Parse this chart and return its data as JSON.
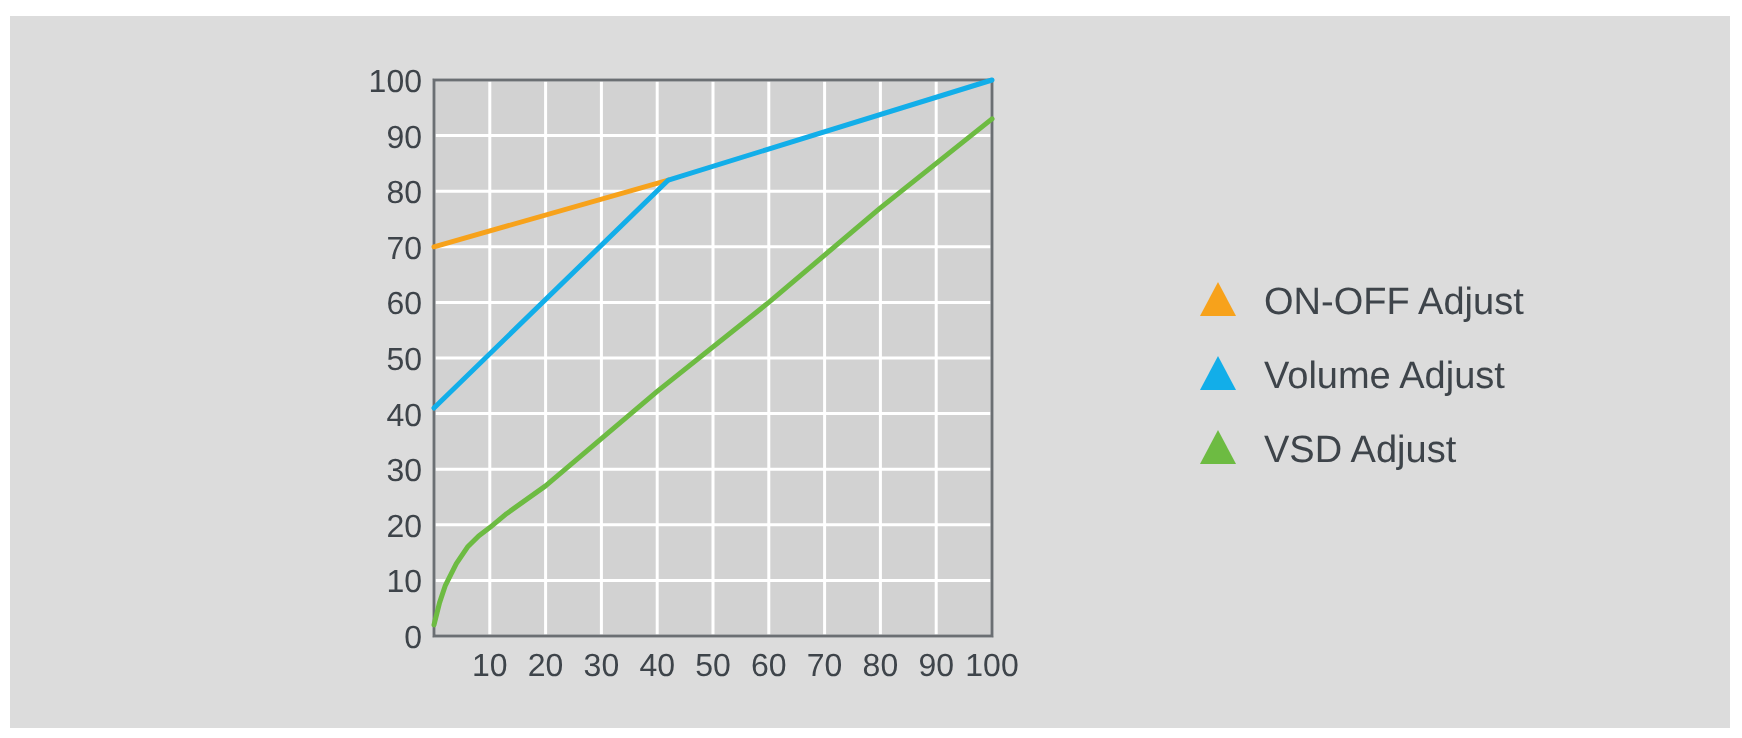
{
  "chart_data": {
    "type": "line",
    "xlim": [
      0,
      100
    ],
    "xticks": [
      {
        "value": 0,
        "label": null
      },
      10,
      20,
      30,
      40,
      50,
      60,
      70,
      80,
      90,
      100
    ],
    "ylim": [
      0,
      100
    ],
    "yticks": [
      0,
      10,
      20,
      30,
      40,
      50,
      60,
      70,
      80,
      90,
      100
    ],
    "grid": true,
    "legend": "right",
    "marker": "none",
    "line_style": "solid",
    "series": [
      {
        "name": "ON-OFF Adjust",
        "color": "#f7a21b",
        "x": [
          0,
          42
        ],
        "values": [
          70,
          82
        ]
      },
      {
        "name": "Volume Adjust",
        "color": "#12aee9",
        "x": [
          0,
          42,
          100
        ],
        "values": [
          41,
          82,
          100
        ]
      },
      {
        "name": "VSD Adjust",
        "color": "#6dbb42",
        "x": [
          0,
          1,
          2,
          4,
          6,
          8,
          10,
          13,
          20,
          40,
          60,
          80,
          100
        ],
        "values": [
          2,
          6,
          9,
          13,
          16,
          18,
          19.5,
          22,
          27,
          44,
          60,
          77,
          93
        ]
      }
    ]
  }
}
